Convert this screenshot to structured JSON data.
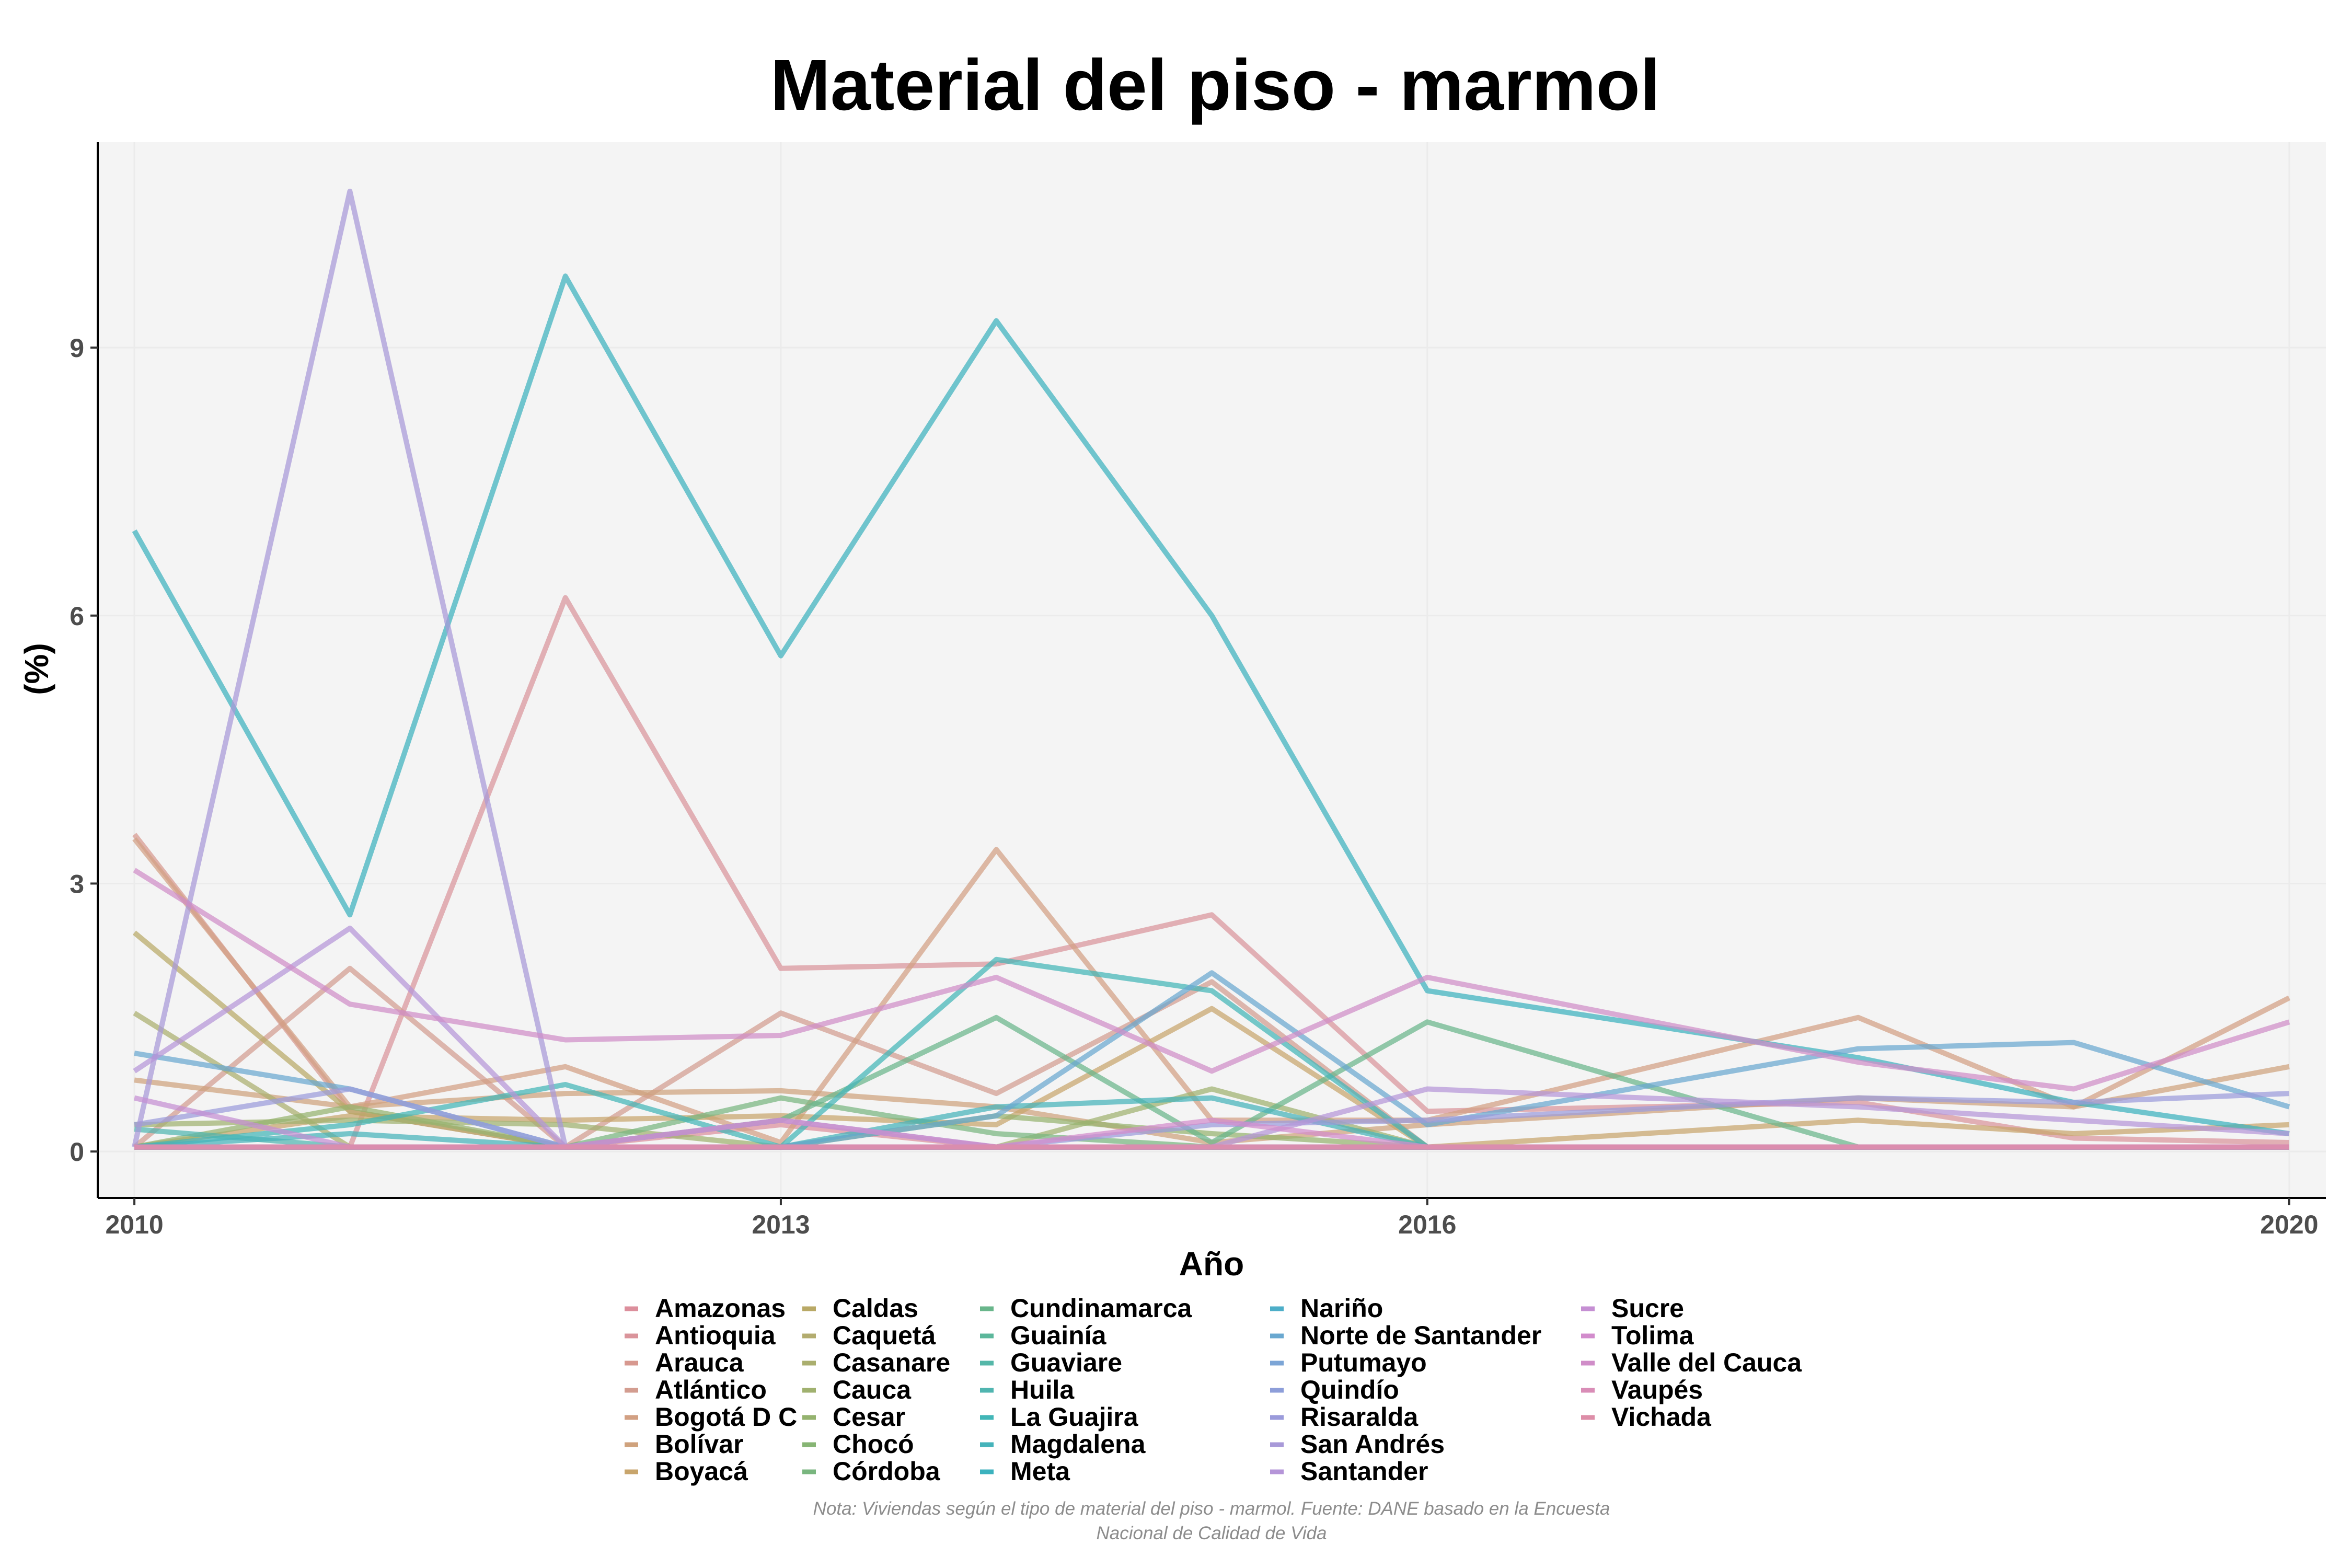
{
  "chart_data": {
    "type": "line",
    "title": "Material del piso - marmol",
    "xlabel": "Año",
    "ylabel": "(%)",
    "xlim": [
      2009.83,
      2020.17
    ],
    "ylim": [
      -0.52,
      11.3
    ],
    "xticks": [
      2010,
      2013,
      2016,
      2020
    ],
    "yticks": [
      0,
      3,
      6,
      9
    ],
    "grid": true,
    "legend_position": "bottom",
    "note": "Nota: Viviendas según el tipo de material del piso - marmol. Fuente: DANE basado en la Encuesta Nacional de Calidad de Vida",
    "x": [
      2010,
      2011,
      2012,
      2013,
      2014,
      2015,
      2016,
      2018,
      2019,
      2020
    ],
    "series": [
      {
        "name": "Amazonas",
        "color": "#dc8f9c",
        "values": [
          0.05,
          0.05,
          0.05,
          0.3,
          0.05,
          0.05,
          0.05,
          0.05,
          0.05,
          0.05
        ]
      },
      {
        "name": "Antioquia",
        "color": "#da949b",
        "values": [
          0.05,
          0.05,
          6.2,
          2.05,
          2.1,
          2.65,
          0.45,
          0.55,
          0.15,
          0.1
        ]
      },
      {
        "name": "Arauca",
        "color": "#d7988f",
        "values": [
          3.55,
          0.45,
          0.05,
          0.05,
          0.05,
          0.05,
          0.05,
          0.05,
          0.05,
          0.05
        ]
      },
      {
        "name": "Atlántico",
        "color": "#d39d90",
        "values": [
          0.05,
          2.05,
          0.05,
          1.55,
          0.65,
          1.9,
          0.05,
          0.05,
          0.05,
          0.05
        ]
      },
      {
        "name": "Bogotá D C",
        "color": "#d2a083",
        "values": [
          3.5,
          0.5,
          0.95,
          0.1,
          3.38,
          0.35,
          0.35,
          1.5,
          0.5,
          1.72
        ]
      },
      {
        "name": "Bolívar",
        "color": "#cfa27d",
        "values": [
          0.8,
          0.5,
          0.65,
          0.68,
          0.5,
          0.1,
          0.3,
          0.6,
          0.5,
          0.95
        ]
      },
      {
        "name": "Boyacá",
        "color": "#c8a56c",
        "values": [
          0.05,
          0.4,
          0.35,
          0.4,
          0.3,
          1.6,
          0.05,
          0.35,
          0.2,
          0.3
        ]
      },
      {
        "name": "Caldas",
        "color": "#b9a966",
        "values": [
          2.45,
          0.45,
          0.05,
          0.05,
          0.05,
          0.05,
          0.05,
          0.05,
          0.05,
          0.05
        ]
      },
      {
        "name": "Caquetá",
        "color": "#b3ac6f",
        "values": [
          0.05,
          0.05,
          0.05,
          0.05,
          0.05,
          0.05,
          0.05,
          0.05,
          0.05,
          0.05
        ]
      },
      {
        "name": "Casanare",
        "color": "#aaae6e",
        "values": [
          1.55,
          0.05,
          0.05,
          0.05,
          0.05,
          0.05,
          0.05,
          0.05,
          0.05,
          0.05
        ]
      },
      {
        "name": "Cauca",
        "color": "#a0b16f",
        "values": [
          0.3,
          0.35,
          0.3,
          0.05,
          0.05,
          0.7,
          0.05,
          0.05,
          0.05,
          0.05
        ]
      },
      {
        "name": "Cesar",
        "color": "#95b36f",
        "values": [
          0.05,
          0.5,
          0.05,
          0.05,
          0.4,
          0.2,
          0.05,
          0.05,
          0.05,
          0.05
        ]
      },
      {
        "name": "Chocó",
        "color": "#87b574",
        "values": [
          0.05,
          0.05,
          0.05,
          0.05,
          0.05,
          0.05,
          0.05,
          0.05,
          0.05,
          0.05
        ]
      },
      {
        "name": "Córdoba",
        "color": "#79b67f",
        "values": [
          0.05,
          0.05,
          0.05,
          0.6,
          0.2,
          0.05,
          0.05,
          0.05,
          0.05,
          0.05
        ]
      },
      {
        "name": "Cundinamarca",
        "color": "#69b68b",
        "values": [
          0.05,
          0.05,
          0.05,
          0.35,
          1.5,
          0.1,
          1.45,
          0.05,
          0.05,
          0.05
        ]
      },
      {
        "name": "Guainía",
        "color": "#5cb79b",
        "values": [
          0.05,
          0.05,
          0.05,
          0.05,
          0.05,
          0.05,
          0.05,
          0.05,
          0.05,
          0.05
        ]
      },
      {
        "name": "Guaviare",
        "color": "#55b7a8",
        "values": [
          0.05,
          0.05,
          0.05,
          0.05,
          0.05,
          0.05,
          0.05,
          0.05,
          0.05,
          0.05
        ]
      },
      {
        "name": "Huila",
        "color": "#50b5b0",
        "values": [
          0.25,
          0.05,
          0.05,
          0.05,
          0.05,
          0.05,
          0.05,
          0.05,
          0.05,
          0.05
        ]
      },
      {
        "name": "La Guajira",
        "color": "#42b6b7",
        "values": [
          0.05,
          0.3,
          0.75,
          0.05,
          2.15,
          1.8,
          0.05,
          0.05,
          0.05,
          0.05
        ]
      },
      {
        "name": "Magdalena",
        "color": "#45b3ba",
        "values": [
          0.05,
          0.2,
          0.05,
          0.05,
          0.5,
          0.6,
          0.05,
          0.05,
          0.05,
          0.05
        ]
      },
      {
        "name": "Meta",
        "color": "#3cb2be",
        "values": [
          6.95,
          2.65,
          9.8,
          5.55,
          9.3,
          6.0,
          1.8,
          1.05,
          0.55,
          0.2
        ]
      },
      {
        "name": "Nariño",
        "color": "#4daec8",
        "values": [
          0.05,
          0.05,
          0.05,
          0.05,
          0.05,
          0.05,
          0.05,
          0.05,
          0.05,
          0.05
        ]
      },
      {
        "name": "Norte de Santander",
        "color": "#6aa8d0",
        "values": [
          1.1,
          0.7,
          0.05,
          0.05,
          0.4,
          2.0,
          0.3,
          1.15,
          1.22,
          0.5
        ]
      },
      {
        "name": "Putumayo",
        "color": "#7ca5d6",
        "values": [
          0.05,
          0.05,
          0.05,
          0.05,
          0.05,
          0.05,
          0.05,
          0.05,
          0.05,
          0.05
        ]
      },
      {
        "name": "Quindío",
        "color": "#8d9ed9",
        "values": [
          0.05,
          0.05,
          0.05,
          0.05,
          0.05,
          0.05,
          0.05,
          0.05,
          0.05,
          0.05
        ]
      },
      {
        "name": "Risaralda",
        "color": "#9b9bdb",
        "values": [
          0.3,
          0.7,
          0.05,
          0.35,
          0.05,
          0.3,
          0.35,
          0.6,
          0.55,
          0.65
        ]
      },
      {
        "name": "San Andrés",
        "color": "#a899d8",
        "values": [
          0.05,
          10.75,
          0.05,
          0.05,
          0.05,
          0.05,
          0.05,
          0.05,
          0.05,
          0.05
        ]
      },
      {
        "name": "Santander",
        "color": "#b595d8",
        "values": [
          0.9,
          2.5,
          0.05,
          0.05,
          0.05,
          0.05,
          0.7,
          0.5,
          0.35,
          0.2
        ]
      },
      {
        "name": "Sucre",
        "color": "#c58fd3",
        "values": [
          0.6,
          0.05,
          0.05,
          0.05,
          0.05,
          0.05,
          0.05,
          0.05,
          0.05,
          0.05
        ]
      },
      {
        "name": "Tolima",
        "color": "#d28ccc",
        "values": [
          0.05,
          0.05,
          0.05,
          0.35,
          0.05,
          0.35,
          0.05,
          0.05,
          0.05,
          0.05
        ]
      },
      {
        "name": "Valle del Cauca",
        "color": "#d08dc8",
        "values": [
          3.15,
          1.65,
          1.25,
          1.3,
          1.95,
          0.9,
          1.95,
          1.0,
          0.7,
          1.45
        ]
      },
      {
        "name": "Vaupés",
        "color": "#d98db7",
        "values": [
          0.05,
          0.05,
          0.05,
          0.05,
          0.05,
          0.05,
          0.05,
          0.05,
          0.05,
          0.05
        ]
      },
      {
        "name": "Vichada",
        "color": "#dd8ea8",
        "values": [
          0.05,
          0.05,
          0.05,
          0.05,
          0.05,
          0.05,
          0.05,
          0.05,
          0.05,
          0.05
        ]
      }
    ]
  }
}
